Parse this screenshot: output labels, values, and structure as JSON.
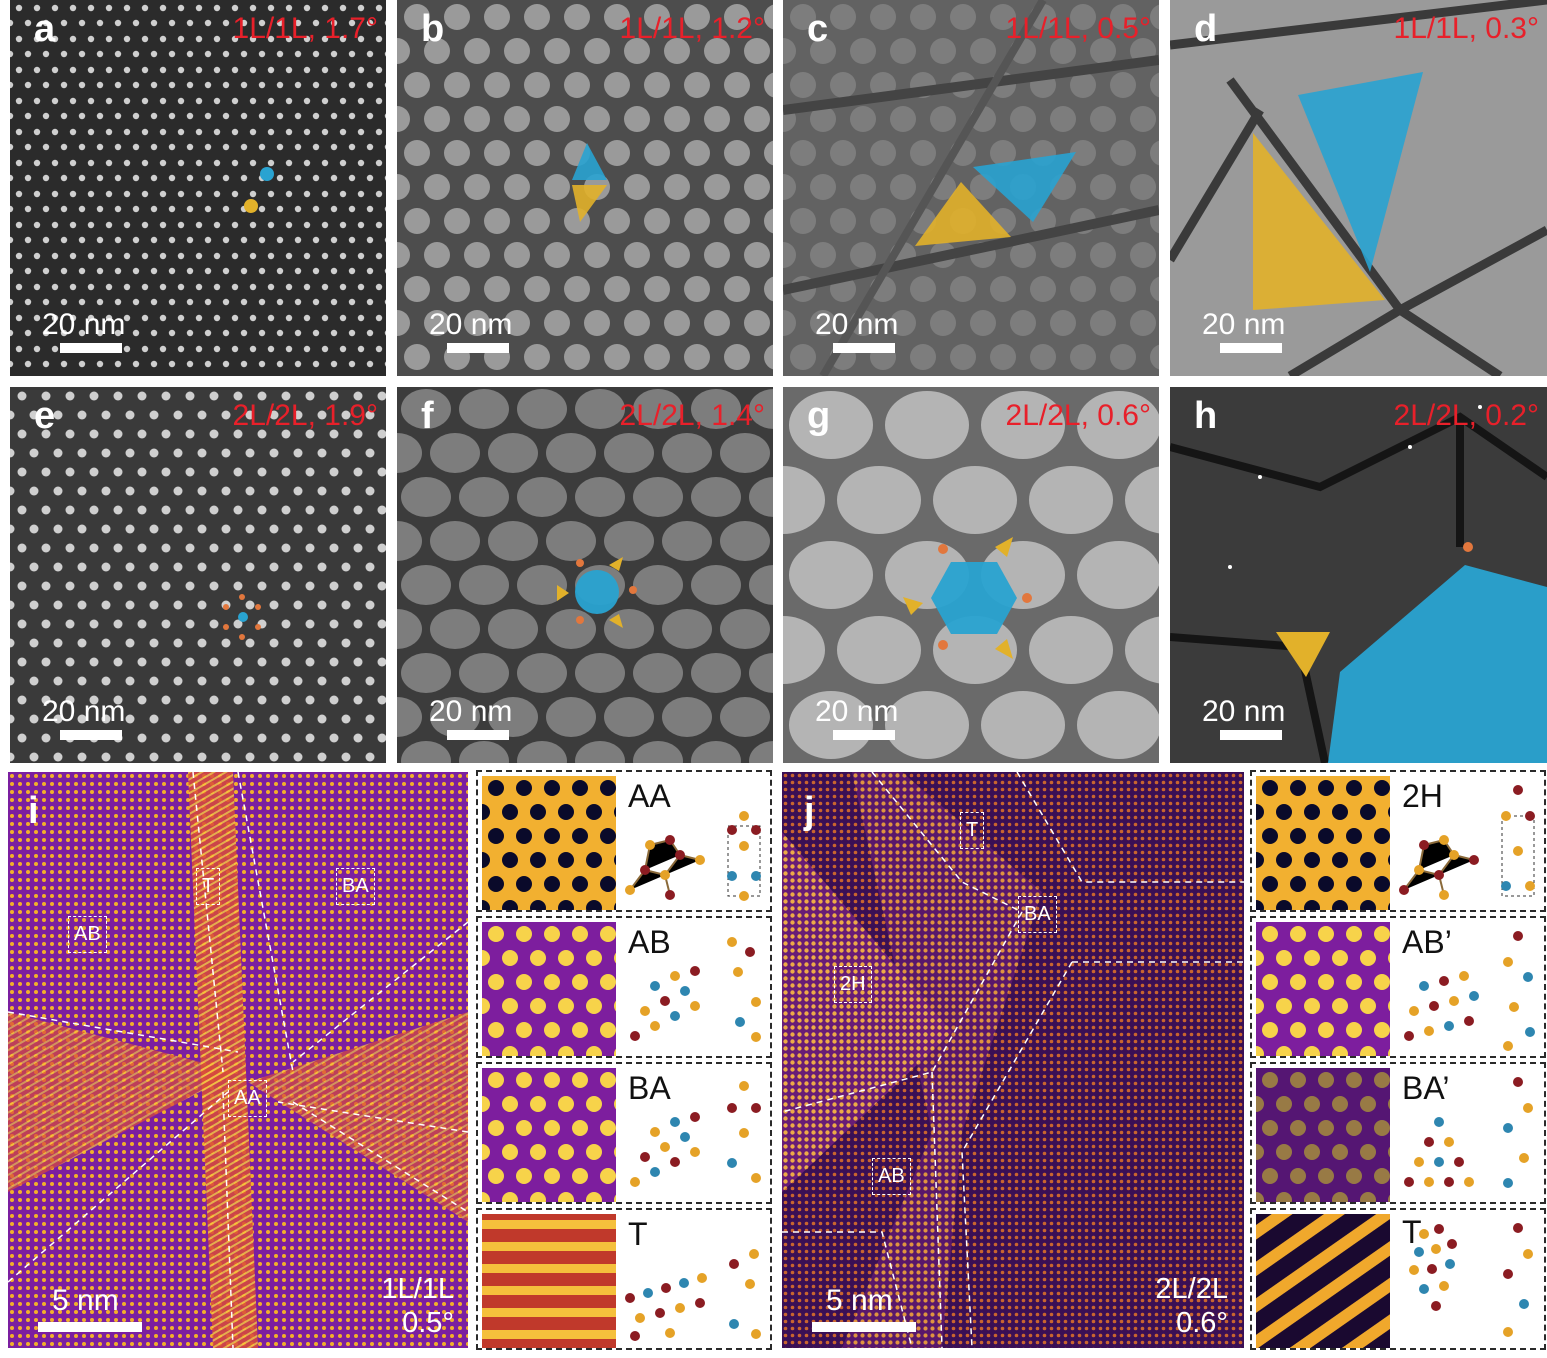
{
  "panels": [
    {
      "letter": "a",
      "annotation": "1L/1L, 1.7°",
      "scale": "20 nm"
    },
    {
      "letter": "b",
      "annotation": "1L/1L, 1.2°",
      "scale": "20 nm"
    },
    {
      "letter": "c",
      "annotation": "1L/1L, 0.5°",
      "scale": "20 nm"
    },
    {
      "letter": "d",
      "annotation": "1L/1L, 0.3°",
      "scale": "20 nm"
    },
    {
      "letter": "e",
      "annotation": "2L/2L, 1.9°",
      "scale": "20 nm"
    },
    {
      "letter": "f",
      "annotation": "2L/2L, 1.4°",
      "scale": "20 nm"
    },
    {
      "letter": "g",
      "annotation": "2L/2L, 0.6°",
      "scale": "20 nm"
    },
    {
      "letter": "h",
      "annotation": "2L/2L, 0.2°",
      "scale": "20 nm"
    }
  ],
  "panel_i": {
    "letter": "i",
    "scale": "5 nm",
    "stack": "1L/1L",
    "angle": "0.5°",
    "regions": [
      "T",
      "BA",
      "AB",
      "AA"
    ],
    "insets": [
      "AA",
      "AB",
      "BA",
      "T"
    ]
  },
  "panel_j": {
    "letter": "j",
    "scale": "5 nm",
    "stack": "2L/2L",
    "angle": "0.6°",
    "regions": [
      "T",
      "BA",
      "2H",
      "AB"
    ],
    "insets": [
      "2H",
      "AB’",
      "BA’",
      "T"
    ]
  },
  "colors": {
    "label_red": "#e8202a",
    "domain_blue": "#29a3d1",
    "domain_yellow": "#e2b12a",
    "vertex_orange": "#e2773d",
    "atom_maroon": "#8b1c22",
    "atom_gold": "#e5a227",
    "atom_teal": "#2e86b0"
  }
}
